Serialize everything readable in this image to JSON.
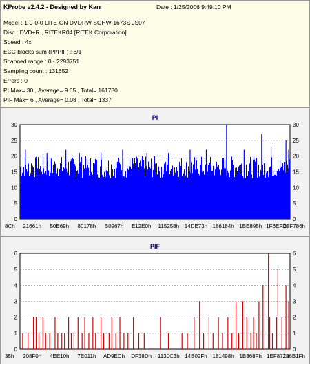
{
  "header": {
    "title": "KProbe v2.4.2 - Designed by Karr",
    "date": "Date : 1/25/2006 9:49:10 PM",
    "lines": [
      "Model : 1-0-0-0 LITE-ON DVDRW SOHW-1673S JS07",
      "Disc : DVD+R , RITEKR04 [RiTEK Corporation]",
      "Speed : 4x",
      "ECC blocks sum (PI/PIF) : 8/1",
      "Scanned range : 0 - 2293751",
      "Sampling count : 131652",
      "Errors : 0",
      "PI Max= 30 , Average= 9.65 , Total= 161780",
      "PIF Max= 6 , Average= 0.08 , Total= 1337"
    ]
  },
  "chart_data": [
    {
      "type": "bar",
      "title": "PI",
      "color": "#0000ff",
      "ylim": [
        0,
        30
      ],
      "yticks": [
        0,
        5,
        10,
        15,
        20,
        25,
        30
      ],
      "xticks": [
        "8Ch",
        "21661h",
        "50E69h",
        "80178h",
        "B0967h",
        "E12E0h",
        "115258h",
        "14DE73h",
        "186184h",
        "1BE895h",
        "1F6EFDh",
        "22F786h"
      ],
      "grid": true,
      "typical_range": [
        13,
        20
      ],
      "peaks": [
        {
          "pos": 0.02,
          "value": 22
        },
        {
          "pos": 0.1,
          "value": 21
        },
        {
          "pos": 0.17,
          "value": 22
        },
        {
          "pos": 0.22,
          "value": 21
        },
        {
          "pos": 0.3,
          "value": 21
        },
        {
          "pos": 0.38,
          "value": 22
        },
        {
          "pos": 0.47,
          "value": 21
        },
        {
          "pos": 0.55,
          "value": 21
        },
        {
          "pos": 0.63,
          "value": 22
        },
        {
          "pos": 0.69,
          "value": 22
        },
        {
          "pos": 0.765,
          "value": 30
        },
        {
          "pos": 0.83,
          "value": 22
        },
        {
          "pos": 0.895,
          "value": 27
        },
        {
          "pos": 0.93,
          "value": 23
        },
        {
          "pos": 0.985,
          "value": 25
        },
        {
          "pos": 0.995,
          "value": 22
        }
      ]
    },
    {
      "type": "bar",
      "title": "PIF",
      "color": "#dd0000",
      "ylim": [
        0,
        6
      ],
      "yticks": [
        0,
        1,
        2,
        3,
        4,
        5,
        6
      ],
      "xticks": [
        "35h",
        "208F0h",
        "4EE10h",
        "7E011h",
        "AD9ECh",
        "DF38Dh",
        "1130C3h",
        "14B02Fh",
        "181498h",
        "1B868Fh",
        "1EF871h",
        "226B1Fh"
      ],
      "grid": true,
      "bars": [
        {
          "pos": 0.01,
          "value": 1
        },
        {
          "pos": 0.03,
          "value": 1
        },
        {
          "pos": 0.05,
          "value": 2
        },
        {
          "pos": 0.06,
          "value": 2
        },
        {
          "pos": 0.07,
          "value": 1
        },
        {
          "pos": 0.085,
          "value": 2
        },
        {
          "pos": 0.095,
          "value": 1
        },
        {
          "pos": 0.11,
          "value": 1
        },
        {
          "pos": 0.13,
          "value": 2
        },
        {
          "pos": 0.14,
          "value": 1
        },
        {
          "pos": 0.155,
          "value": 1
        },
        {
          "pos": 0.165,
          "value": 1
        },
        {
          "pos": 0.18,
          "value": 2
        },
        {
          "pos": 0.19,
          "value": 1
        },
        {
          "pos": 0.2,
          "value": 1
        },
        {
          "pos": 0.215,
          "value": 2
        },
        {
          "pos": 0.23,
          "value": 1
        },
        {
          "pos": 0.24,
          "value": 2
        },
        {
          "pos": 0.255,
          "value": 1
        },
        {
          "pos": 0.27,
          "value": 2
        },
        {
          "pos": 0.28,
          "value": 1
        },
        {
          "pos": 0.3,
          "value": 2
        },
        {
          "pos": 0.31,
          "value": 1
        },
        {
          "pos": 0.33,
          "value": 1
        },
        {
          "pos": 0.34,
          "value": 2
        },
        {
          "pos": 0.355,
          "value": 1
        },
        {
          "pos": 0.37,
          "value": 2
        },
        {
          "pos": 0.385,
          "value": 1
        },
        {
          "pos": 0.4,
          "value": 1
        },
        {
          "pos": 0.42,
          "value": 2
        },
        {
          "pos": 0.44,
          "value": 1
        },
        {
          "pos": 0.46,
          "value": 1
        },
        {
          "pos": 0.52,
          "value": 2
        },
        {
          "pos": 0.55,
          "value": 1
        },
        {
          "pos": 0.6,
          "value": 1
        },
        {
          "pos": 0.62,
          "value": 1
        },
        {
          "pos": 0.645,
          "value": 2
        },
        {
          "pos": 0.665,
          "value": 3
        },
        {
          "pos": 0.68,
          "value": 1
        },
        {
          "pos": 0.7,
          "value": 2
        },
        {
          "pos": 0.715,
          "value": 1
        },
        {
          "pos": 0.735,
          "value": 2
        },
        {
          "pos": 0.75,
          "value": 1
        },
        {
          "pos": 0.77,
          "value": 2
        },
        {
          "pos": 0.785,
          "value": 1
        },
        {
          "pos": 0.8,
          "value": 3
        },
        {
          "pos": 0.81,
          "value": 1
        },
        {
          "pos": 0.825,
          "value": 3
        },
        {
          "pos": 0.84,
          "value": 2
        },
        {
          "pos": 0.855,
          "value": 1
        },
        {
          "pos": 0.865,
          "value": 2
        },
        {
          "pos": 0.875,
          "value": 1
        },
        {
          "pos": 0.885,
          "value": 3
        },
        {
          "pos": 0.9,
          "value": 4
        },
        {
          "pos": 0.92,
          "value": 6
        },
        {
          "pos": 0.925,
          "value": 2
        },
        {
          "pos": 0.935,
          "value": 1
        },
        {
          "pos": 0.95,
          "value": 2
        },
        {
          "pos": 0.955,
          "value": 5
        },
        {
          "pos": 0.97,
          "value": 2
        },
        {
          "pos": 0.985,
          "value": 4
        },
        {
          "pos": 0.995,
          "value": 3
        }
      ]
    }
  ]
}
